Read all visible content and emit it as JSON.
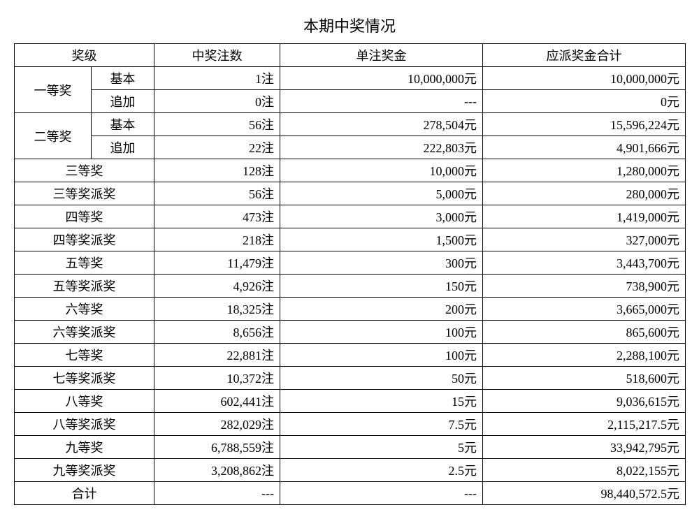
{
  "title": "本期中奖情况",
  "headers": {
    "level": "奖级",
    "count": "中奖注数",
    "unit_prize": "单注奖金",
    "total_payout": "应派奖金合计"
  },
  "sub": {
    "basic": "基本",
    "addon": "追加"
  },
  "labels": {
    "p1": "一等奖",
    "p2": "二等奖",
    "p3": "三等奖",
    "p3b": "三等奖派奖",
    "p4": "四等奖",
    "p4b": "四等奖派奖",
    "p5": "五等奖",
    "p5b": "五等奖派奖",
    "p6": "六等奖",
    "p6b": "六等奖派奖",
    "p7": "七等奖",
    "p7b": "七等奖派奖",
    "p8": "八等奖",
    "p8b": "八等奖派奖",
    "p9": "九等奖",
    "p9b": "九等奖派奖",
    "total": "合计"
  },
  "rows": {
    "p1_basic": {
      "count": "1注",
      "unit": "10,000,000元",
      "total": "10,000,000元"
    },
    "p1_addon": {
      "count": "0注",
      "unit": "---",
      "total": "0元"
    },
    "p2_basic": {
      "count": "56注",
      "unit": "278,504元",
      "total": "15,596,224元"
    },
    "p2_addon": {
      "count": "22注",
      "unit": "222,803元",
      "total": "4,901,666元"
    },
    "p3": {
      "count": "128注",
      "unit": "10,000元",
      "total": "1,280,000元"
    },
    "p3b": {
      "count": "56注",
      "unit": "5,000元",
      "total": "280,000元"
    },
    "p4": {
      "count": "473注",
      "unit": "3,000元",
      "total": "1,419,000元"
    },
    "p4b": {
      "count": "218注",
      "unit": "1,500元",
      "total": "327,000元"
    },
    "p5": {
      "count": "11,479注",
      "unit": "300元",
      "total": "3,443,700元"
    },
    "p5b": {
      "count": "4,926注",
      "unit": "150元",
      "total": "738,900元"
    },
    "p6": {
      "count": "18,325注",
      "unit": "200元",
      "total": "3,665,000元"
    },
    "p6b": {
      "count": "8,656注",
      "unit": "100元",
      "total": "865,600元"
    },
    "p7": {
      "count": "22,881注",
      "unit": "100元",
      "total": "2,288,100元"
    },
    "p7b": {
      "count": "10,372注",
      "unit": "50元",
      "total": "518,600元"
    },
    "p8": {
      "count": "602,441注",
      "unit": "15元",
      "total": "9,036,615元"
    },
    "p8b": {
      "count": "282,029注",
      "unit": "7.5元",
      "total": "2,115,217.5元"
    },
    "p9": {
      "count": "6,788,559注",
      "unit": "5元",
      "total": "33,942,795元"
    },
    "p9b": {
      "count": "3,208,862注",
      "unit": "2.5元",
      "total": "8,022,155元"
    },
    "totalrow": {
      "count": "---",
      "unit": "---",
      "total": "98,440,572.5元"
    }
  }
}
